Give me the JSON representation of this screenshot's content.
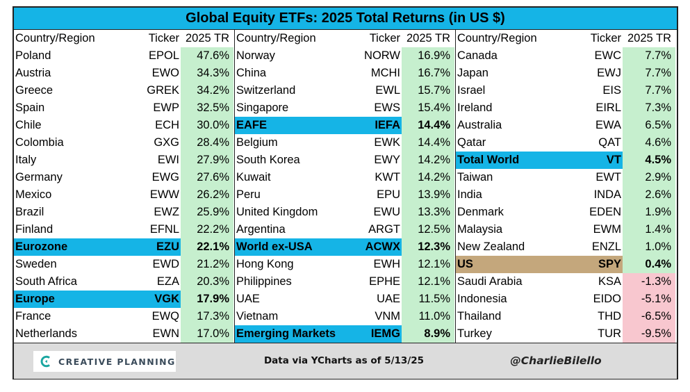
{
  "title": "Global Equity ETFs: 2025 Total Returns (in US $)",
  "headers": {
    "country": "Country/Region",
    "ticker": "Ticker",
    "tr": "2025 TR"
  },
  "columns": [
    [
      {
        "country": "Poland",
        "ticker": "EPOL",
        "tr": "47.6%",
        "style": ""
      },
      {
        "country": "Austria",
        "ticker": "EWO",
        "tr": "34.3%",
        "style": ""
      },
      {
        "country": "Greece",
        "ticker": "GREK",
        "tr": "34.2%",
        "style": ""
      },
      {
        "country": "Spain",
        "ticker": "EWP",
        "tr": "32.5%",
        "style": ""
      },
      {
        "country": "Chile",
        "ticker": "ECH",
        "tr": "30.0%",
        "style": ""
      },
      {
        "country": "Colombia",
        "ticker": "GXG",
        "tr": "28.4%",
        "style": ""
      },
      {
        "country": "Italy",
        "ticker": "EWI",
        "tr": "27.9%",
        "style": ""
      },
      {
        "country": "Germany",
        "ticker": "EWG",
        "tr": "27.6%",
        "style": ""
      },
      {
        "country": "Mexico",
        "ticker": "EWW",
        "tr": "26.2%",
        "style": ""
      },
      {
        "country": "Brazil",
        "ticker": "EWZ",
        "tr": "25.9%",
        "style": ""
      },
      {
        "country": "Finland",
        "ticker": "EFNL",
        "tr": "22.2%",
        "style": ""
      },
      {
        "country": "Eurozone",
        "ticker": "EZU",
        "tr": "22.1%",
        "style": "hl"
      },
      {
        "country": "Sweden",
        "ticker": "EWD",
        "tr": "21.2%",
        "style": ""
      },
      {
        "country": "South Africa",
        "ticker": "EZA",
        "tr": "20.3%",
        "style": ""
      },
      {
        "country": "Europe",
        "ticker": "VGK",
        "tr": "17.9%",
        "style": "hl"
      },
      {
        "country": "France",
        "ticker": "EWQ",
        "tr": "17.3%",
        "style": ""
      },
      {
        "country": "Netherlands",
        "ticker": "EWN",
        "tr": "17.0%",
        "style": ""
      }
    ],
    [
      {
        "country": "Norway",
        "ticker": "NORW",
        "tr": "16.9%",
        "style": ""
      },
      {
        "country": "China",
        "ticker": "MCHI",
        "tr": "16.7%",
        "style": ""
      },
      {
        "country": "Switzerland",
        "ticker": "EWL",
        "tr": "15.7%",
        "style": ""
      },
      {
        "country": "Singapore",
        "ticker": "EWS",
        "tr": "15.4%",
        "style": ""
      },
      {
        "country": "EAFE",
        "ticker": "IEFA",
        "tr": "14.4%",
        "style": "hl"
      },
      {
        "country": "Belgium",
        "ticker": "EWK",
        "tr": "14.4%",
        "style": ""
      },
      {
        "country": "South Korea",
        "ticker": "EWY",
        "tr": "14.2%",
        "style": ""
      },
      {
        "country": "Kuwait",
        "ticker": "KWT",
        "tr": "14.2%",
        "style": ""
      },
      {
        "country": "Peru",
        "ticker": "EPU",
        "tr": "13.9%",
        "style": ""
      },
      {
        "country": "United Kingdom",
        "ticker": "EWU",
        "tr": "13.3%",
        "style": ""
      },
      {
        "country": "Argentina",
        "ticker": "ARGT",
        "tr": "12.5%",
        "style": ""
      },
      {
        "country": "World ex-USA",
        "ticker": "ACWX",
        "tr": "12.3%",
        "style": "hl"
      },
      {
        "country": "Hong Kong",
        "ticker": "EWH",
        "tr": "12.1%",
        "style": ""
      },
      {
        "country": "Philippines",
        "ticker": "EPHE",
        "tr": "12.1%",
        "style": ""
      },
      {
        "country": "UAE",
        "ticker": "UAE",
        "tr": "11.5%",
        "style": ""
      },
      {
        "country": "Vietnam",
        "ticker": "VNM",
        "tr": "11.0%",
        "style": ""
      },
      {
        "country": "Emerging Markets",
        "ticker": "IEMG",
        "tr": "8.9%",
        "style": "hl"
      }
    ],
    [
      {
        "country": "Canada",
        "ticker": "EWC",
        "tr": "7.7%",
        "style": ""
      },
      {
        "country": "Japan",
        "ticker": "EWJ",
        "tr": "7.7%",
        "style": ""
      },
      {
        "country": "Israel",
        "ticker": "EIS",
        "tr": "7.7%",
        "style": ""
      },
      {
        "country": "Ireland",
        "ticker": "EIRL",
        "tr": "7.3%",
        "style": ""
      },
      {
        "country": "Australia",
        "ticker": "EWA",
        "tr": "6.5%",
        "style": ""
      },
      {
        "country": "Qatar",
        "ticker": "QAT",
        "tr": "4.6%",
        "style": ""
      },
      {
        "country": "Total World",
        "ticker": "VT",
        "tr": "4.5%",
        "style": "hl"
      },
      {
        "country": "Taiwan",
        "ticker": "EWT",
        "tr": "2.9%",
        "style": ""
      },
      {
        "country": "India",
        "ticker": "INDA",
        "tr": "2.6%",
        "style": ""
      },
      {
        "country": "Denmark",
        "ticker": "EDEN",
        "tr": "1.9%",
        "style": ""
      },
      {
        "country": "Malaysia",
        "ticker": "EWM",
        "tr": "1.4%",
        "style": ""
      },
      {
        "country": "New Zealand",
        "ticker": "ENZL",
        "tr": "1.0%",
        "style": ""
      },
      {
        "country": "US",
        "ticker": "SPY",
        "tr": "0.4%",
        "style": "us"
      },
      {
        "country": "Saudi Arabia",
        "ticker": "KSA",
        "tr": "-1.3%",
        "style": "neg"
      },
      {
        "country": "Indonesia",
        "ticker": "EIDO",
        "tr": "-5.1%",
        "style": "neg"
      },
      {
        "country": "Thailand",
        "ticker": "THD",
        "tr": "-6.5%",
        "style": "neg"
      },
      {
        "country": "Turkey",
        "ticker": "TUR",
        "tr": "-9.5%",
        "style": "neg"
      }
    ]
  ],
  "footer": {
    "logo_text": "CREATIVE PLANNING",
    "logo_icon": "creative-planning-c-icon",
    "source": "Data via YCharts as of 5/13/25",
    "handle": "@CharlieBilello"
  },
  "colors": {
    "title_bg": "#15b4e6",
    "highlight": "#15b4e6",
    "us_highlight": "#c4a77c",
    "positive_fill": "#c6efce",
    "negative_fill": "#f8c7cf",
    "footer_bg": "#dcdcdc"
  }
}
